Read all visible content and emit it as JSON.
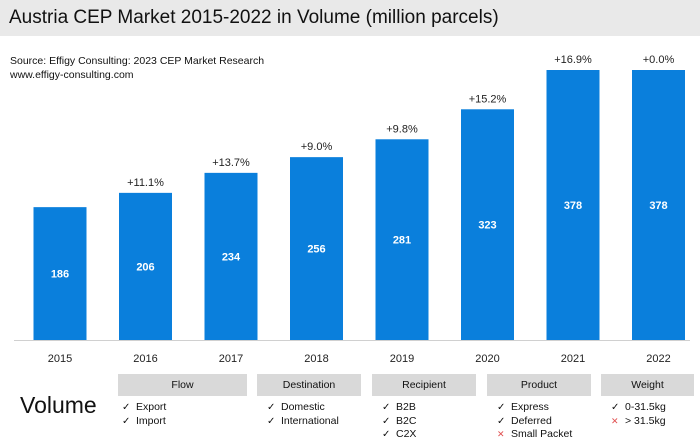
{
  "title": "Austria CEP Market 2015-2022 in Volume (million parcels)",
  "source": {
    "line1": "Source: Effigy Consulting: 2023 CEP Market Research",
    "line2": "www.effigy-consulting.com"
  },
  "chart_data": {
    "type": "bar",
    "title": "Austria CEP Market 2015-2022 in Volume (million parcels)",
    "categories": [
      "2015",
      "2016",
      "2017",
      "2018",
      "2019",
      "2020",
      "2021",
      "2022"
    ],
    "values": [
      186,
      206,
      234,
      256,
      281,
      323,
      378,
      378
    ],
    "growth_labels": [
      "",
      "+11.1%",
      "+13.7%",
      "+9.0%",
      "+9.8%",
      "+15.2%",
      "+16.9%",
      "+0.0%"
    ],
    "bar_color": "#0a7fdc",
    "ylim": [
      0,
      378
    ],
    "xlabel": "",
    "ylabel": ""
  },
  "volume_label": "Volume",
  "categories": [
    {
      "title": "Flow",
      "items": [
        {
          "label": "Export",
          "mark": "check"
        },
        {
          "label": "Import",
          "mark": "check"
        }
      ]
    },
    {
      "title": "Destination",
      "items": [
        {
          "label": "Domestic",
          "mark": "check"
        },
        {
          "label": "International",
          "mark": "check"
        }
      ]
    },
    {
      "title": "Recipient",
      "items": [
        {
          "label": "B2B",
          "mark": "check"
        },
        {
          "label": "B2C",
          "mark": "check"
        },
        {
          "label": "C2X",
          "mark": "check"
        }
      ]
    },
    {
      "title": "Product",
      "items": [
        {
          "label": "Express",
          "mark": "check"
        },
        {
          "label": "Deferred",
          "mark": "check"
        },
        {
          "label": "Small Packet",
          "mark": "cross"
        }
      ]
    },
    {
      "title": "Weight",
      "items": [
        {
          "label": "0-31.5kg",
          "mark": "check"
        },
        {
          "label": "> 31.5kg",
          "mark": "cross"
        }
      ]
    }
  ]
}
